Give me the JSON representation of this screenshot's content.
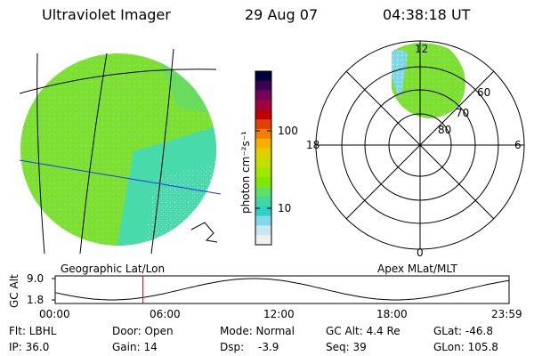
{
  "header": {
    "title": "Ultraviolet Imager",
    "date": "29 Aug 07",
    "time": "04:38:18 UT"
  },
  "colorbar": {
    "label": "photon cm⁻²s⁻¹",
    "ticks": [
      "100",
      "10"
    ],
    "colors": [
      "#000040",
      "#3c0050",
      "#780058",
      "#a00040",
      "#c00000",
      "#e04000",
      "#f08000",
      "#f8b000",
      "#e0d000",
      "#c0e000",
      "#a0e800",
      "#80e800",
      "#60e060",
      "#40d8a0",
      "#30d0c8",
      "#80d8e8",
      "#c8e8f0",
      "#f0f0f0"
    ]
  },
  "polar": {
    "clock_labels": [
      "12",
      "18",
      "6",
      "0"
    ],
    "lat_labels": [
      "60",
      "70",
      "80"
    ]
  },
  "panels": {
    "left_label": "Geographic Lat/Lon",
    "right_label": "Apex MLat/MLT"
  },
  "altitude_plot": {
    "axis_label": "GC Alt",
    "y_ticks": [
      "9.0",
      "1.8"
    ],
    "x_ticks": [
      "00:00",
      "06:00",
      "12:00",
      "18:00",
      "23:59"
    ],
    "current_time_hours": 4.64
  },
  "status": {
    "flt": "Flt: LBHL",
    "ip": "IP: 36.0",
    "door": "Door: Open",
    "gain": "Gain: 14",
    "mode": "Mode: Normal",
    "dsp_label": "Dsp:",
    "dsp_value": "-3.9",
    "gc_alt": "GC Alt: 4.4 Re",
    "seq": "Seq: 39",
    "glat": "GLat: -46.8",
    "glon": "GLon: 105.8"
  },
  "colors": {
    "aurora_green": "#80e030",
    "aurora_cyan": "#40d8c0",
    "marker": "#e00000",
    "meridian": "#2030ff"
  }
}
